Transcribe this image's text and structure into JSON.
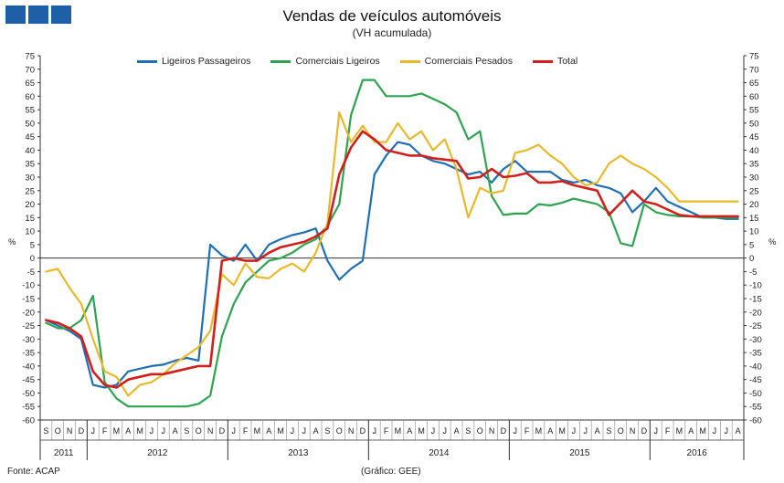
{
  "header": {
    "title": "Vendas de veículos automóveis",
    "subtitle": "(VH acumulada)"
  },
  "footer": {
    "source": "Fonte: ACAP",
    "credit": "(Gráfico: GEE)"
  },
  "chart_data": {
    "type": "line",
    "title": "Vendas de veículos automóveis",
    "subtitle": "(VH acumulada)",
    "ylabel": "%",
    "ylabel_right": "%",
    "ylim": [
      -60,
      75
    ],
    "ystep": 5,
    "grid": false,
    "legend_position": "top",
    "month_labels": [
      "S",
      "O",
      "N",
      "D",
      "J",
      "F",
      "M",
      "A",
      "M",
      "J",
      "J",
      "A",
      "S",
      "O",
      "N",
      "D",
      "J",
      "F",
      "M",
      "A",
      "M",
      "J",
      "J",
      "A",
      "S",
      "O",
      "N",
      "D",
      "J",
      "F",
      "M",
      "A",
      "M",
      "J",
      "J",
      "A",
      "S",
      "O",
      "N",
      "D",
      "J",
      "F",
      "M",
      "A",
      "M",
      "J",
      "J",
      "A",
      "S",
      "O",
      "N",
      "D",
      "J",
      "F",
      "M",
      "A",
      "M",
      "J",
      "J",
      "A"
    ],
    "years": [
      {
        "label": "2011",
        "start": 0,
        "end": 3
      },
      {
        "label": "2012",
        "start": 4,
        "end": 15
      },
      {
        "label": "2013",
        "start": 16,
        "end": 27
      },
      {
        "label": "2014",
        "start": 28,
        "end": 39
      },
      {
        "label": "2015",
        "start": 40,
        "end": 51
      },
      {
        "label": "2016",
        "start": 52,
        "end": 59
      }
    ],
    "series": [
      {
        "name": "Ligeiros Passageiros",
        "color": "#1f6fb5",
        "values": [
          -23,
          -25,
          -27,
          -30,
          -47,
          -48,
          -47,
          -42,
          -41,
          -40,
          -39.5,
          -38,
          -37,
          -38,
          5,
          1,
          -1,
          5,
          -1,
          5,
          7,
          8.5,
          9.5,
          11,
          -1,
          -8,
          -4,
          -1,
          31,
          38,
          43,
          42,
          38,
          36,
          35,
          33,
          31,
          32,
          28,
          33,
          36,
          32,
          32,
          32,
          29,
          28,
          29,
          27,
          26,
          24,
          17,
          21,
          26,
          21,
          19,
          17,
          15,
          15,
          14.5,
          14.5
        ]
      },
      {
        "name": "Comerciais Ligeiros",
        "color": "#2ea44f",
        "values": [
          -24,
          -26,
          -26,
          -23,
          -14,
          -46,
          -52,
          -55,
          -55,
          -55,
          -55,
          -55,
          -55,
          -54,
          -51,
          -29,
          -17,
          -9,
          -5,
          -1,
          0,
          2,
          5,
          7,
          12,
          20,
          53,
          66,
          66,
          60,
          60,
          60,
          61,
          59,
          57,
          54,
          44,
          47,
          23,
          16,
          16.5,
          16.5,
          20,
          19.5,
          20.5,
          22,
          21,
          20,
          17,
          5.5,
          4.5,
          20,
          17,
          16,
          15.5,
          15.5,
          15,
          15,
          15,
          15
        ]
      },
      {
        "name": "Comerciais Pesados",
        "color": "#e8b92a",
        "values": [
          -5,
          -4,
          -11,
          -17,
          -30,
          -42,
          -44,
          -51,
          -47,
          -46,
          -43,
          -39,
          -36,
          -33,
          -27,
          -6,
          -10,
          -2,
          -7,
          -7.5,
          -4,
          -2,
          -5,
          2,
          13,
          54,
          43,
          49,
          43,
          43,
          50,
          44,
          47,
          40,
          44,
          33,
          15,
          26,
          24,
          25,
          39,
          40,
          42,
          38,
          35,
          30,
          27,
          28,
          35,
          38,
          35,
          33,
          30,
          26,
          21,
          21,
          21,
          21,
          21,
          21
        ]
      },
      {
        "name": "Total",
        "color": "#d0201c",
        "values": [
          -23,
          -24,
          -26,
          -29,
          -42,
          -47,
          -48,
          -45,
          -44,
          -43,
          -43,
          -42,
          -41,
          -40,
          -40,
          -1,
          0,
          -1,
          -1,
          2,
          4,
          5,
          6,
          8,
          11,
          31,
          41,
          47,
          44,
          40,
          39,
          38,
          38,
          37,
          36.5,
          36,
          29.5,
          30,
          33,
          30,
          30.5,
          31.5,
          28,
          28,
          28.5,
          27,
          26,
          25,
          16,
          20.5,
          25,
          21,
          20,
          18,
          16,
          15.5,
          15.5,
          15.5,
          15.5,
          15.5
        ]
      }
    ]
  }
}
